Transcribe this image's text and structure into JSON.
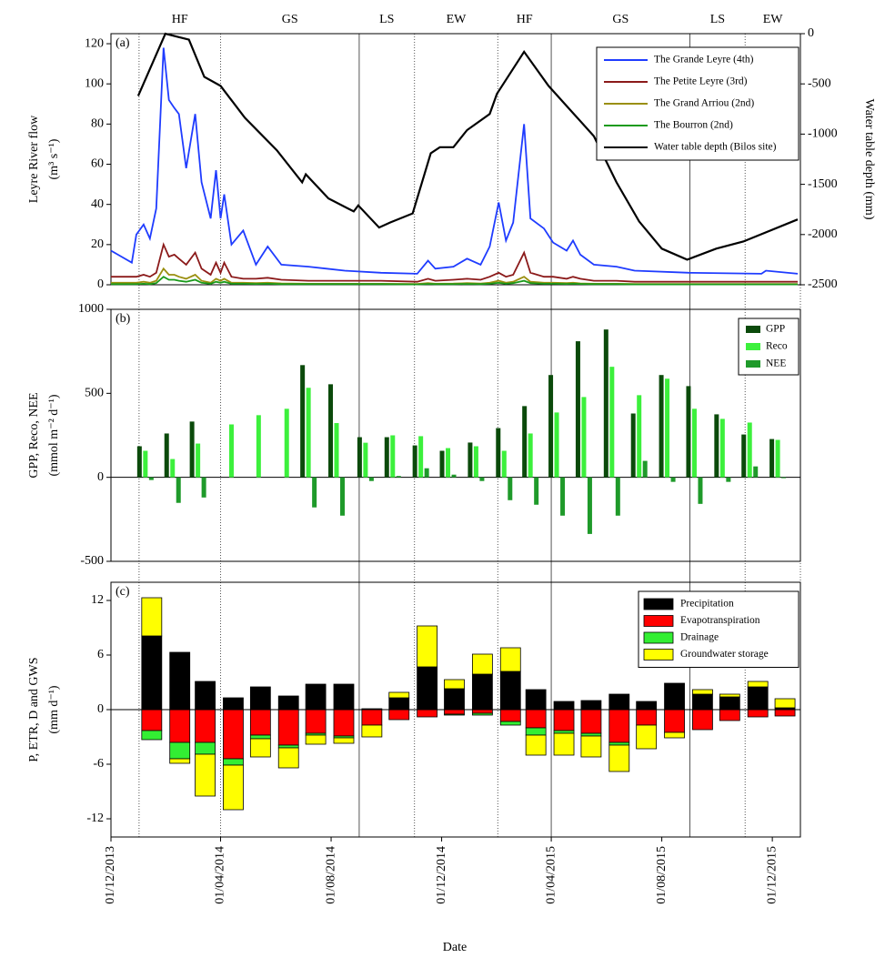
{
  "chart_data": [
    {
      "type": "line",
      "panel_label": "(a)",
      "ylabel": [
        "Leyre River flow",
        "(m³ s⁻¹)"
      ],
      "y2label": "Water table depth (mm)",
      "ylim": [
        0,
        125
      ],
      "yticks": [
        0,
        20,
        40,
        60,
        80,
        100,
        120
      ],
      "y2lim": [
        -2500,
        0
      ],
      "y2ticks": [
        -2500,
        -2000,
        -1500,
        -1000,
        -500,
        0
      ],
      "legend": "upper right",
      "seasons": [
        "HF",
        "GS",
        "LS",
        "EW",
        "HF",
        "GS",
        "LS",
        "EW"
      ],
      "season_lines": [
        {
          "date": "2014-01-01",
          "style": "dotted"
        },
        {
          "date": "2014-04-01",
          "style": "dotted"
        },
        {
          "date": "2014-09-01",
          "style": "solid"
        },
        {
          "date": "2014-11-01",
          "style": "dotted"
        },
        {
          "date": "2015-02-01",
          "style": "dotted"
        },
        {
          "date": "2015-04-01",
          "style": "solid"
        },
        {
          "date": "2015-09-01",
          "style": "solid"
        },
        {
          "date": "2015-11-01",
          "style": "dotted"
        },
        {
          "date": "2016-01-01",
          "style": "dotted"
        }
      ],
      "x": [
        "2013-12-01",
        "2013-12-24",
        "2013-12-29",
        "2014-01-06",
        "2014-01-13",
        "2014-01-20",
        "2014-01-28",
        "2014-02-03",
        "2014-02-09",
        "2014-02-14",
        "2014-02-22",
        "2014-03-04",
        "2014-03-11",
        "2014-03-21",
        "2014-03-27",
        "2014-04-01",
        "2014-04-05",
        "2014-04-13",
        "2014-04-26",
        "2014-05-10",
        "2014-05-23",
        "2014-06-07",
        "2014-07-07",
        "2014-07-27",
        "2014-08-16",
        "2014-09-25",
        "2014-11-04",
        "2014-11-16",
        "2014-11-24",
        "2014-12-14",
        "2014-12-29",
        "2015-01-13",
        "2015-01-23",
        "2015-02-02",
        "2015-02-10",
        "2015-02-18",
        "2015-03-02",
        "2015-03-09",
        "2015-03-24",
        "2015-04-03",
        "2015-04-18",
        "2015-04-25",
        "2015-05-03",
        "2015-05-18",
        "2015-06-12",
        "2015-07-02",
        "2015-08-31",
        "2015-11-19",
        "2015-11-24",
        "2015-12-29"
      ],
      "series": [
        {
          "name": "The Grande Leyre (4th)",
          "color": "#1f3cff",
          "values": [
            17,
            11,
            25,
            30,
            23,
            38,
            118,
            92,
            88,
            85,
            58,
            85,
            51,
            33,
            57,
            33,
            45,
            20,
            27,
            10,
            19,
            10,
            9,
            8,
            7,
            6,
            5.5,
            12,
            8,
            9,
            13,
            10,
            19,
            41,
            22,
            31,
            80,
            33,
            28,
            21,
            17,
            22,
            15,
            10,
            9,
            7,
            6,
            5.5,
            7,
            5.5
          ]
        },
        {
          "name": "The Petite Leyre (3rd)",
          "color": "#8b1a1a",
          "values": [
            4,
            4,
            4,
            5,
            4,
            6,
            20,
            14,
            15,
            13,
            10,
            16,
            8,
            5,
            11,
            6,
            11,
            4,
            3,
            3,
            3.5,
            2.5,
            2,
            2,
            2,
            2,
            1.5,
            3,
            2,
            2.5,
            3,
            2.5,
            4,
            6,
            4,
            5,
            16,
            6,
            4,
            4,
            3,
            4,
            3,
            2,
            2,
            1.5,
            1.5,
            1.5,
            1.5,
            1.5
          ]
        },
        {
          "name": "The Grand Arriou (2nd)",
          "color": "#9a8f10",
          "values": [
            1,
            1,
            1,
            1.5,
            1,
            2,
            8,
            5,
            5,
            4,
            3,
            5,
            2,
            1,
            3,
            2,
            3,
            1,
            1,
            0.8,
            1,
            0.7,
            0.5,
            0.5,
            0.5,
            0.5,
            0.4,
            0.8,
            0.5,
            0.6,
            0.8,
            0.6,
            1,
            2,
            1,
            1.5,
            4,
            1.5,
            1,
            1,
            0.8,
            1,
            0.7,
            0.5,
            0.5,
            0.4,
            0.4,
            0.4,
            0.4,
            0.4
          ]
        },
        {
          "name": "The Bourron (2nd)",
          "color": "#1a9a1a",
          "values": [
            0.3,
            0.3,
            0.3,
            0.5,
            0.3,
            0.8,
            4,
            2.5,
            2.5,
            2,
            1.5,
            2.5,
            1,
            0.5,
            1.5,
            1,
            1.5,
            0.5,
            0.5,
            0.4,
            0.5,
            0.3,
            0.3,
            0.3,
            0.3,
            0.3,
            0.2,
            0.4,
            0.3,
            0.3,
            0.4,
            0.3,
            0.5,
            1,
            0.5,
            0.8,
            2,
            0.8,
            0.5,
            0.5,
            0.4,
            0.5,
            0.4,
            0.3,
            0.3,
            0.2,
            0.2,
            0.2,
            0.2,
            0.2
          ]
        },
        {
          "name": "Water table depth (Bilos site)",
          "color": "#000000",
          "axis": "y2",
          "x": [
            "2013-12-31",
            "2014-01-30",
            "2014-02-12",
            "2014-02-25",
            "2014-03-14",
            "2014-04-01",
            "2014-04-28",
            "2014-06-02",
            "2014-06-30",
            "2014-07-04",
            "2014-07-29",
            "2014-08-26",
            "2014-08-31",
            "2014-09-23",
            "2014-10-05",
            "2014-10-30",
            "2014-11-19",
            "2014-11-29",
            "2014-12-14",
            "2014-12-29",
            "2015-01-23",
            "2015-01-31",
            "2015-03-02",
            "2015-03-29",
            "2015-04-18",
            "2015-05-18",
            "2015-06-12",
            "2015-07-07",
            "2015-08-01",
            "2015-08-29",
            "2015-09-30",
            "2015-10-30",
            "2015-12-29"
          ],
          "values": [
            -620,
            0,
            -30,
            -60,
            -430,
            -520,
            -840,
            -1160,
            -1480,
            -1400,
            -1640,
            -1770,
            -1710,
            -1930,
            -1880,
            -1790,
            -1190,
            -1130,
            -1130,
            -960,
            -800,
            -600,
            -180,
            -520,
            -720,
            -1020,
            -1480,
            -1870,
            -2140,
            -2250,
            -2140,
            -2070,
            -1850
          ]
        }
      ]
    },
    {
      "type": "bar",
      "panel_label": "(b)",
      "ylabel": [
        "GPP, Reco, NEE",
        "(mmol m⁻² d⁻¹)"
      ],
      "ylim": [
        -500,
        1000
      ],
      "yticks": [
        -500,
        0,
        500,
        1000
      ],
      "legend": "upper right",
      "x": [
        "2014-01-08",
        "2014-02-07",
        "2014-03-07",
        "2014-04-13",
        "2014-05-13",
        "2014-06-13",
        "2014-07-07",
        "2014-08-07",
        "2014-09-08",
        "2014-10-08",
        "2014-11-08",
        "2014-12-08",
        "2015-01-08",
        "2015-02-08",
        "2015-03-09",
        "2015-04-07",
        "2015-05-07",
        "2015-06-07",
        "2015-07-07",
        "2015-08-07",
        "2015-09-06",
        "2015-10-07",
        "2015-11-06",
        "2015-12-07"
      ],
      "series": [
        {
          "name": "GPP",
          "color": "#0b4a0b",
          "values": [
            185,
            261,
            332,
            null,
            null,
            null,
            668,
            554,
            239,
            239,
            190,
            158,
            207,
            293,
            424,
            609,
            810,
            880,
            380,
            609,
            543,
            375,
            255,
            228
          ]
        },
        {
          "name": "Reco",
          "color": "#3cf03c",
          "values": [
            158,
            109,
            201,
            315,
            370,
            408,
            533,
            323,
            206,
            250,
            245,
            174,
            185,
            158,
            261,
            386,
            478,
            658,
            489,
            587,
            408,
            348,
            326,
            223
          ]
        },
        {
          "name": "NEE",
          "color": "#1f9a2a",
          "values": [
            -16,
            -152,
            -120,
            null,
            null,
            null,
            -179,
            -228,
            -22,
            8,
            54,
            16,
            -22,
            -136,
            -163,
            -228,
            -337,
            -228,
            98,
            -27,
            -158,
            -27,
            65,
            -5
          ]
        }
      ]
    },
    {
      "type": "stacked_bar",
      "panel_label": "(c)",
      "ylabel": [
        "P, ETR, D and GWS",
        "(mm d⁻¹)"
      ],
      "xlabel": "Date",
      "ylim": [
        -14,
        14
      ],
      "yticks": [
        -12,
        -6,
        0,
        6,
        12
      ],
      "legend": "upper right",
      "xlim": [
        "2013-12-01",
        "2016-01-01"
      ],
      "xticks": [
        {
          "value": "2013-12-01",
          "label": "01/12/2013"
        },
        {
          "value": "2014-04-01",
          "label": "01/04/2014"
        },
        {
          "value": "2014-08-01",
          "label": "01/08/2014"
        },
        {
          "value": "2014-12-01",
          "label": "01/12/2014"
        },
        {
          "value": "2015-04-01",
          "label": "01/04/2015"
        },
        {
          "value": "2015-08-01",
          "label": "01/08/2015"
        },
        {
          "value": "2015-12-01",
          "label": "01/12/2015"
        }
      ],
      "x": [
        "2014-01-15",
        "2014-02-15",
        "2014-03-15",
        "2014-04-15",
        "2014-05-15",
        "2014-06-15",
        "2014-07-15",
        "2014-08-15",
        "2014-09-15",
        "2014-10-15",
        "2014-11-15",
        "2014-12-15",
        "2015-01-15",
        "2015-02-15",
        "2015-03-15",
        "2015-04-15",
        "2015-05-15",
        "2015-06-15",
        "2015-07-15",
        "2015-08-15",
        "2015-09-15",
        "2015-10-15",
        "2015-11-15",
        "2015-12-15"
      ],
      "series": [
        {
          "name": "Precipitation",
          "color": "#000000",
          "values": [
            8.1,
            6.3,
            3.1,
            1.3,
            2.5,
            1.5,
            2.8,
            2.8,
            0.1,
            1.3,
            4.7,
            2.3,
            3.9,
            4.2,
            2.2,
            0.9,
            1.0,
            1.7,
            0.9,
            2.9,
            1.7,
            1.4,
            2.5,
            0.2
          ]
        },
        {
          "name": "Evapotranspiration",
          "color": "#ff0000",
          "values": [
            -2.3,
            -3.6,
            -3.6,
            -5.4,
            -2.8,
            -3.9,
            -2.6,
            -2.9,
            -1.7,
            -1.1,
            -0.8,
            -0.5,
            -0.4,
            -1.3,
            -2.0,
            -2.3,
            -2.6,
            -3.6,
            -1.7,
            -2.5,
            -2.2,
            -1.2,
            -0.8,
            -0.7
          ]
        },
        {
          "name": "Drainage",
          "color": "#33ee33",
          "values": [
            -1.0,
            -1.8,
            -1.3,
            -0.7,
            -0.4,
            -0.3,
            -0.2,
            -0.2,
            0,
            0,
            0,
            -0.1,
            -0.2,
            -0.4,
            -0.8,
            -0.3,
            -0.3,
            -0.3,
            0,
            0,
            0,
            0,
            0,
            0
          ]
        },
        {
          "name": "Groundwater storage",
          "color": "#ffff00",
          "values": [
            4.2,
            -0.5,
            -4.6,
            -4.9,
            -2.0,
            -2.2,
            -1.0,
            -0.6,
            -1.3,
            0.6,
            4.5,
            1.0,
            2.2,
            2.6,
            -2.2,
            -2.4,
            -2.3,
            -2.9,
            -2.6,
            -0.6,
            0.5,
            0.3,
            0.6,
            1.0
          ]
        }
      ]
    }
  ]
}
